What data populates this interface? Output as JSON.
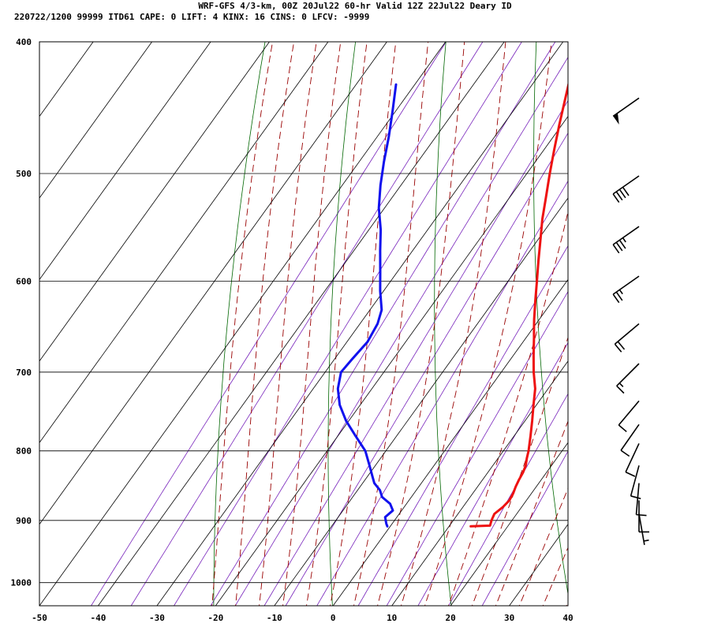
{
  "header": {
    "title": "WRF-GFS 4/3-km, 00Z 20Jul22 60-hr Valid 12Z 22Jul22 Deary ID",
    "subtitle": "220722/1200 99999  ITD61   CAPE:     0 LIFT:     4 KINX:    16 CINS:     0 LFCV: -9999"
  },
  "chart_data": {
    "type": "line",
    "subtype": "skew-T log-P sounding",
    "title": "WRF-GFS 4/3-km, 00Z 20Jul22 60-hr Valid 12Z 22Jul22 Deary ID",
    "xlim": [
      -50,
      40
    ],
    "ylim_pressure": [
      1040,
      400
    ],
    "y_scale": "log",
    "x_ticks": [
      -50,
      -40,
      -30,
      -20,
      -10,
      0,
      10,
      20,
      30,
      40
    ],
    "x_tick_labels": [
      "-50",
      "-40",
      "-30",
      "-20",
      "-10",
      "0",
      "10",
      "20",
      "30",
      "40"
    ],
    "pressure_levels": [
      400,
      500,
      600,
      700,
      800,
      900,
      1000
    ],
    "pressure_labels": [
      "400",
      "500",
      "600",
      "700",
      "800",
      "900",
      "1000"
    ],
    "grid": true,
    "colors": {
      "temperature": "#ee1111",
      "dewpoint": "#1111ee",
      "isotherm": "#000000",
      "isobar": "#000000",
      "dry_adiabat": "#006600",
      "moist_adiabat": "#990000",
      "mixing_ratio": "#7722bb",
      "wind_barb": "#000000"
    },
    "series": [
      {
        "key": "temperature",
        "points": [
          [
            909,
            13.7
          ],
          [
            908,
            16.9
          ],
          [
            900,
            16.5
          ],
          [
            890,
            16.2
          ],
          [
            880,
            16.8
          ],
          [
            870,
            17.1
          ],
          [
            860,
            16.9
          ],
          [
            850,
            16.5
          ],
          [
            840,
            16.2
          ],
          [
            830,
            16.0
          ],
          [
            820,
            15.6
          ],
          [
            810,
            14.9
          ],
          [
            800,
            14.3
          ],
          [
            780,
            12.8
          ],
          [
            760,
            11.2
          ],
          [
            740,
            9.5
          ],
          [
            720,
            7.8
          ],
          [
            700,
            5.5
          ],
          [
            680,
            3.4
          ],
          [
            660,
            1.3
          ],
          [
            650,
            0.2
          ],
          [
            640,
            -0.9
          ],
          [
            620,
            -3.0
          ],
          [
            600,
            -5.1
          ],
          [
            580,
            -7.3
          ],
          [
            560,
            -9.5
          ],
          [
            540,
            -11.8
          ],
          [
            520,
            -13.9
          ],
          [
            500,
            -16.1
          ],
          [
            480,
            -18.3
          ],
          [
            460,
            -20.5
          ],
          [
            440,
            -22.7
          ],
          [
            425,
            -24.4
          ]
        ]
      },
      {
        "key": "dewpoint",
        "points": [
          [
            909,
            -0.5
          ],
          [
            905,
            -1.0
          ],
          [
            895,
            -2.0
          ],
          [
            885,
            -1.5
          ],
          [
            875,
            -2.8
          ],
          [
            865,
            -5.0
          ],
          [
            855,
            -6.2
          ],
          [
            845,
            -8.0
          ],
          [
            835,
            -9.2
          ],
          [
            820,
            -11.0
          ],
          [
            800,
            -13.5
          ],
          [
            780,
            -17.0
          ],
          [
            760,
            -20.5
          ],
          [
            740,
            -23.5
          ],
          [
            720,
            -25.8
          ],
          [
            700,
            -27.3
          ],
          [
            685,
            -27.0
          ],
          [
            665,
            -26.5
          ],
          [
            645,
            -27.0
          ],
          [
            630,
            -28.0
          ],
          [
            610,
            -30.6
          ],
          [
            590,
            -33.0
          ],
          [
            570,
            -35.5
          ],
          [
            550,
            -38.0
          ],
          [
            530,
            -41.0
          ],
          [
            510,
            -43.5
          ],
          [
            490,
            -45.8
          ],
          [
            470,
            -48.0
          ],
          [
            450,
            -50.5
          ],
          [
            430,
            -53.2
          ]
        ]
      }
    ],
    "wind_barbs": [
      {
        "p": 440,
        "dir": 235,
        "spd": 50
      },
      {
        "p": 502,
        "dir": 235,
        "spd": 40
      },
      {
        "p": 547,
        "dir": 235,
        "spd": 35
      },
      {
        "p": 595,
        "dir": 235,
        "spd": 25
      },
      {
        "p": 645,
        "dir": 230,
        "spd": 20
      },
      {
        "p": 690,
        "dir": 225,
        "spd": 15
      },
      {
        "p": 735,
        "dir": 220,
        "spd": 10
      },
      {
        "p": 765,
        "dir": 215,
        "spd": 10
      },
      {
        "p": 790,
        "dir": 205,
        "spd": 10
      },
      {
        "p": 820,
        "dir": 195,
        "spd": 10
      },
      {
        "p": 845,
        "dir": 185,
        "spd": 10
      },
      {
        "p": 870,
        "dir": 180,
        "spd": 10
      },
      {
        "p": 890,
        "dir": 170,
        "spd": 5
      }
    ]
  }
}
